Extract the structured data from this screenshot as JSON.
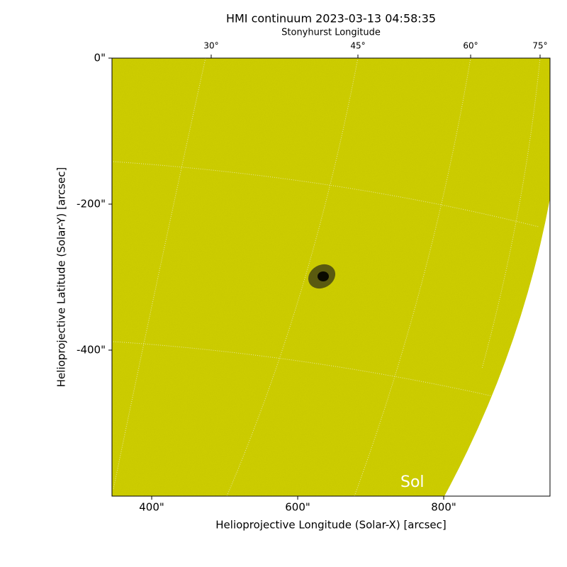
{
  "chart_data": {
    "type": "image",
    "title": "HMI continuum 2023-03-13 04:58:35",
    "top_axis_label": "Stonyhurst Longitude",
    "x_label": "Helioprojective Longitude (Solar-X) [arcsec]",
    "y_label": "Helioprojective Latitude (Solar-Y) [arcsec]",
    "annotation": "Sol",
    "color": "#cccc00",
    "xlim": [
      345.6,
      945.6
    ],
    "ylim": [
      -600,
      0
    ],
    "xticks": [
      {
        "value": 400,
        "label": "400\""
      },
      {
        "value": 600,
        "label": "600\""
      },
      {
        "value": 800,
        "label": "800\""
      }
    ],
    "yticks": [
      {
        "value": 0,
        "label": "0\""
      },
      {
        "value": -200,
        "label": "-200\""
      },
      {
        "value": -400,
        "label": "-400\""
      }
    ],
    "top_ticks": [
      {
        "value": 481.5,
        "label": "30°"
      },
      {
        "value": 682.5,
        "label": "45°"
      },
      {
        "value": 836.9,
        "label": "60°"
      },
      {
        "value": 932,
        "label": "75°"
      }
    ]
  }
}
